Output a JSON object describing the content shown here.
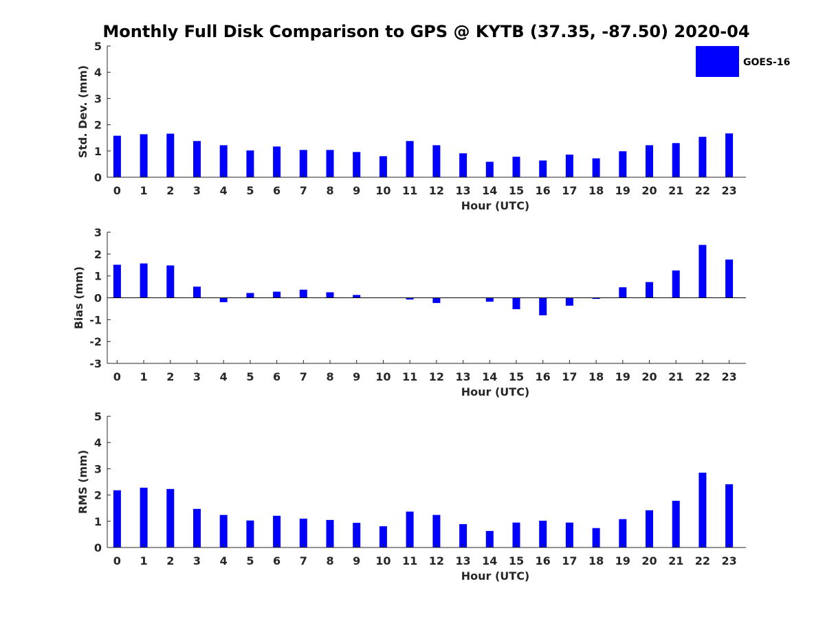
{
  "title": "Monthly Full Disk Comparison to GPS @ KYTB (37.35, -87.50) 2020-04",
  "legend": {
    "label": "GOES-16",
    "color": "#0000ff"
  },
  "chart_data": [
    {
      "type": "bar",
      "categories": [
        "0",
        "1",
        "2",
        "3",
        "4",
        "5",
        "6",
        "7",
        "8",
        "9",
        "10",
        "11",
        "12",
        "13",
        "14",
        "15",
        "16",
        "17",
        "18",
        "19",
        "20",
        "21",
        "22",
        "23"
      ],
      "series": [
        {
          "name": "GOES-16",
          "values": [
            1.58,
            1.64,
            1.66,
            1.38,
            1.22,
            1.02,
            1.17,
            1.04,
            1.04,
            0.96,
            0.8,
            1.38,
            1.22,
            0.91,
            0.59,
            0.78,
            0.64,
            0.86,
            0.72,
            0.99,
            1.22,
            1.3,
            1.54,
            1.67
          ]
        }
      ],
      "xlabel": "Hour (UTC)",
      "ylabel": "Std. Dev. (mm)",
      "ylim": [
        0,
        5
      ],
      "yticks": [
        "0",
        "1",
        "2",
        "3",
        "4",
        "5"
      ],
      "zero_line": false
    },
    {
      "type": "bar",
      "categories": [
        "0",
        "1",
        "2",
        "3",
        "4",
        "5",
        "6",
        "7",
        "8",
        "9",
        "10",
        "11",
        "12",
        "13",
        "14",
        "15",
        "16",
        "17",
        "18",
        "19",
        "20",
        "21",
        "22",
        "23"
      ],
      "series": [
        {
          "name": "GOES-16",
          "values": [
            1.51,
            1.57,
            1.48,
            0.51,
            -0.2,
            0.22,
            0.28,
            0.37,
            0.25,
            0.13,
            0.0,
            -0.08,
            -0.24,
            0.0,
            -0.18,
            -0.52,
            -0.8,
            -0.36,
            -0.05,
            0.48,
            0.72,
            1.25,
            2.42,
            1.75
          ]
        }
      ],
      "xlabel": "Hour (UTC)",
      "ylabel": "Bias (mm)",
      "ylim": [
        -3,
        3
      ],
      "yticks": [
        "-3",
        "-2",
        "-1",
        "0",
        "1",
        "2",
        "3"
      ],
      "zero_line": true
    },
    {
      "type": "bar",
      "categories": [
        "0",
        "1",
        "2",
        "3",
        "4",
        "5",
        "6",
        "7",
        "8",
        "9",
        "10",
        "11",
        "12",
        "13",
        "14",
        "15",
        "16",
        "17",
        "18",
        "19",
        "20",
        "21",
        "22",
        "23"
      ],
      "series": [
        {
          "name": "GOES-16",
          "values": [
            2.18,
            2.28,
            2.23,
            1.47,
            1.24,
            1.03,
            1.21,
            1.1,
            1.05,
            0.94,
            0.81,
            1.37,
            1.24,
            0.89,
            0.63,
            0.95,
            1.02,
            0.95,
            0.74,
            1.08,
            1.42,
            1.78,
            2.85,
            2.41
          ]
        }
      ],
      "xlabel": "Hour (UTC)",
      "ylabel": "RMS (mm)",
      "ylim": [
        0,
        5
      ],
      "yticks": [
        "0",
        "1",
        "2",
        "3",
        "4",
        "5"
      ],
      "zero_line": false
    }
  ]
}
